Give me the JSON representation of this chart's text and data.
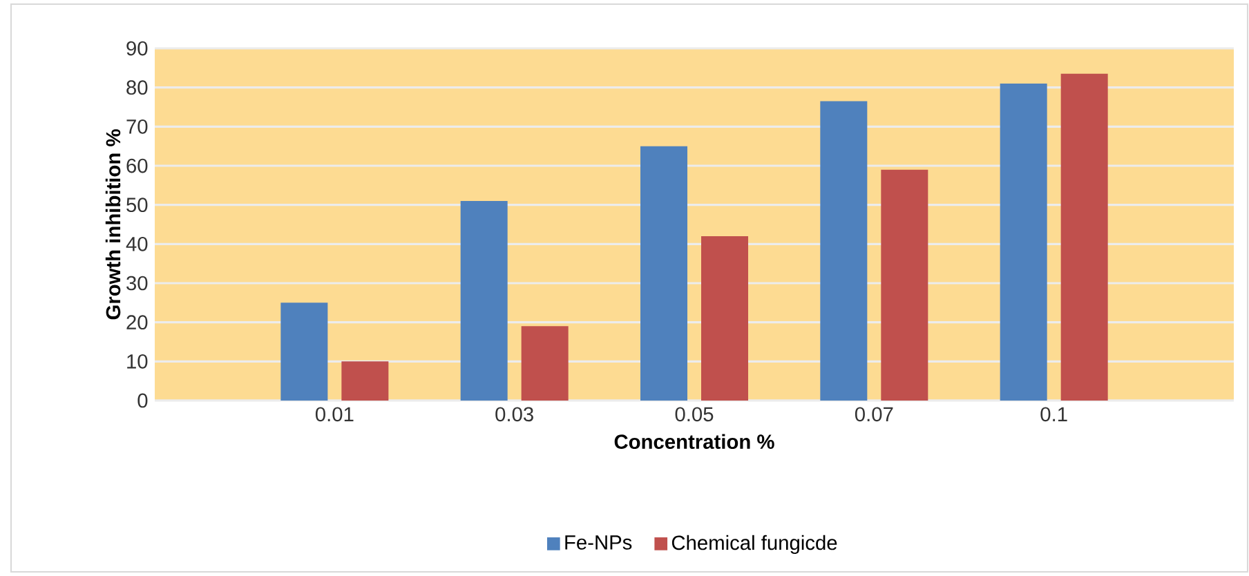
{
  "chart_data": {
    "type": "bar",
    "xlabel": "Concentration %",
    "ylabel": "Growth inhibition %",
    "categories": [
      "0.01",
      "0.03",
      "0.05",
      "0.07",
      "0.1"
    ],
    "series": [
      {
        "name": "Fe-NPs",
        "color": "#4f81bd",
        "values": [
          25,
          51,
          65,
          76.5,
          81
        ]
      },
      {
        "name": "Chemical fungicde",
        "color": "#c0504d",
        "values": [
          10,
          19,
          42,
          59,
          83.5
        ]
      }
    ],
    "ylim": [
      0,
      90
    ],
    "yticks": [
      0,
      10,
      20,
      30,
      40,
      50,
      60,
      70,
      80,
      90
    ],
    "grid": "y",
    "legend": "bottom"
  }
}
